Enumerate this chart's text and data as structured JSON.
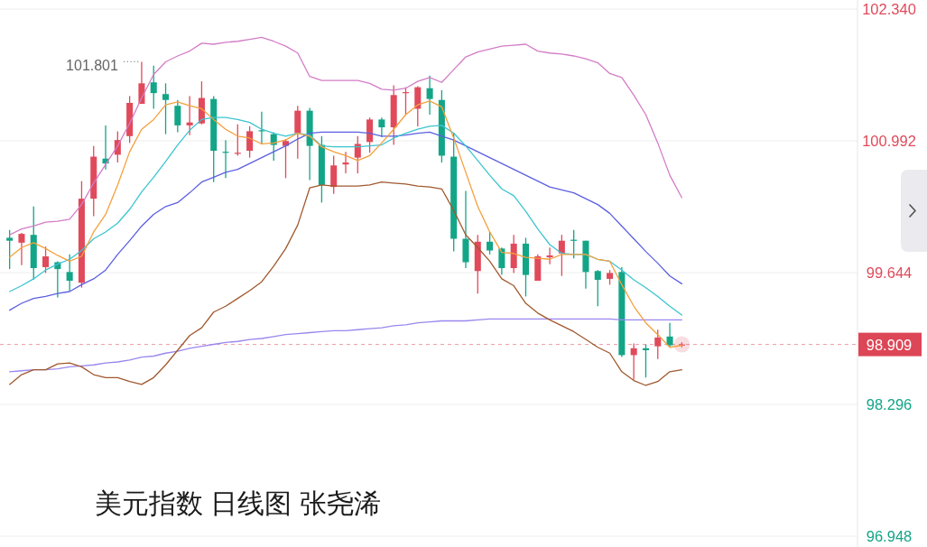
{
  "chart_data": {
    "type": "candlestick",
    "title": "美元指数 日线图 张尧浠",
    "categories": [
      null,
      null,
      null,
      null,
      null,
      null,
      null,
      null,
      null,
      null,
      null,
      null,
      null,
      null,
      null,
      null,
      null,
      null,
      null,
      null,
      null,
      null,
      null,
      null,
      null,
      null,
      null,
      null,
      null,
      null,
      null,
      null,
      null,
      null,
      null,
      null,
      null,
      null,
      null,
      null,
      null,
      null,
      null,
      null,
      null,
      null,
      null,
      null,
      null,
      null,
      null,
      null,
      null,
      null,
      null,
      null,
      null
    ],
    "ohlc": [
      [
        100.0,
        100.08,
        99.68,
        99.97
      ],
      [
        99.95,
        100.05,
        99.72,
        100.04
      ],
      [
        100.03,
        100.32,
        99.57,
        99.69
      ],
      [
        99.7,
        99.91,
        99.64,
        99.81
      ],
      [
        99.75,
        99.76,
        99.39,
        99.68
      ],
      [
        99.65,
        99.83,
        99.46,
        99.56
      ],
      [
        99.54,
        100.58,
        99.49,
        100.4
      ],
      [
        100.4,
        100.94,
        100.22,
        100.83
      ],
      [
        100.81,
        101.15,
        100.7,
        100.76
      ],
      [
        100.85,
        101.09,
        100.77,
        101.0
      ],
      [
        101.04,
        101.45,
        100.97,
        101.38
      ],
      [
        101.37,
        101.801,
        101.37,
        101.58
      ],
      [
        101.59,
        101.76,
        101.32,
        101.48
      ],
      [
        101.47,
        101.58,
        101.06,
        101.41
      ],
      [
        101.35,
        101.41,
        101.08,
        101.15
      ],
      [
        101.15,
        101.45,
        101.05,
        101.18
      ],
      [
        101.17,
        101.6,
        101.16,
        101.43
      ],
      [
        101.42,
        101.45,
        100.57,
        100.89
      ],
      [
        100.88,
        101.0,
        100.61,
        100.87
      ],
      [
        100.86,
        101.16,
        100.84,
        100.87
      ],
      [
        100.89,
        101.14,
        100.82,
        101.09
      ],
      [
        101.1,
        101.29,
        100.96,
        101.09
      ],
      [
        101.06,
        101.08,
        100.79,
        100.95
      ],
      [
        100.94,
        101.01,
        100.61,
        100.99
      ],
      [
        101.07,
        101.35,
        100.81,
        101.3
      ],
      [
        101.3,
        101.33,
        100.59,
        100.94
      ],
      [
        100.95,
        101.04,
        100.36,
        100.54
      ],
      [
        100.52,
        100.84,
        100.45,
        100.74
      ],
      [
        100.75,
        100.88,
        100.66,
        100.77
      ],
      [
        100.82,
        101.04,
        100.66,
        100.96
      ],
      [
        100.98,
        101.23,
        100.87,
        101.21
      ],
      [
        101.21,
        101.23,
        101.03,
        101.13
      ],
      [
        101.13,
        101.56,
        100.95,
        101.46
      ],
      [
        101.48,
        101.54,
        101.26,
        101.49
      ],
      [
        101.32,
        101.55,
        101.14,
        101.54
      ],
      [
        101.53,
        101.66,
        101.26,
        101.42
      ],
      [
        101.41,
        101.51,
        100.77,
        100.84
      ],
      [
        100.83,
        101.07,
        99.86,
        99.99
      ],
      [
        99.99,
        100.48,
        99.69,
        99.75
      ],
      [
        99.66,
        100.03,
        99.43,
        99.96
      ],
      [
        99.96,
        100.06,
        99.83,
        99.87
      ],
      [
        99.89,
        99.9,
        99.62,
        99.69
      ],
      [
        99.69,
        100.03,
        99.64,
        99.94
      ],
      [
        99.94,
        100.0,
        99.4,
        99.62
      ],
      [
        99.56,
        99.83,
        99.56,
        99.81
      ],
      [
        99.8,
        99.9,
        99.73,
        99.82
      ],
      [
        99.84,
        100.03,
        99.61,
        99.97
      ],
      [
        99.98,
        100.08,
        99.79,
        99.97
      ],
      [
        99.97,
        99.97,
        99.48,
        99.65
      ],
      [
        99.66,
        99.67,
        99.3,
        99.57
      ],
      [
        99.58,
        99.67,
        99.52,
        99.64
      ],
      [
        99.65,
        99.7,
        98.78,
        98.8
      ],
      [
        98.8,
        98.92,
        98.55,
        98.87
      ],
      [
        98.87,
        98.91,
        98.57,
        98.85
      ],
      [
        98.89,
        99.06,
        98.76,
        98.98
      ],
      [
        98.99,
        99.13,
        98.88,
        98.9
      ],
      [
        98.9,
        98.93,
        98.88,
        98.909
      ]
    ],
    "colors": [
      "#13a587",
      "#e04a5b",
      "#13a587",
      "#e04a5b",
      "#13a587",
      "#13a587",
      "#e04a5b",
      "#e04a5b",
      "#13a587",
      "#e04a5b",
      "#e04a5b",
      "#e04a5b",
      "#13a587",
      "#13a587",
      "#13a587",
      "#e04a5b",
      "#e04a5b",
      "#13a587",
      "#13a587",
      "#e04a5b",
      "#e04a5b",
      "#13a587",
      "#13a587",
      "#e04a5b",
      "#e04a5b",
      "#13a587",
      "#13a587",
      "#e04a5b",
      "#e04a5b",
      "#e04a5b",
      "#e04a5b",
      "#13a587",
      "#e04a5b",
      "#e04a5b",
      "#e04a5b",
      "#13a587",
      "#13a587",
      "#13a587",
      "#13a587",
      "#e04a5b",
      "#13a587",
      "#13a587",
      "#e04a5b",
      "#13a587",
      "#e04a5b",
      "#e04a5b",
      "#e04a5b",
      "#13a587",
      "#13a587",
      "#13a587",
      "#e04a5b",
      "#13a587",
      "#e04a5b",
      "#13a587",
      "#e04a5b",
      "#13a587",
      "#e04a5b"
    ],
    "series": [
      {
        "type": "line",
        "color": "#9a87ee",
        "values": [
          98.63,
          98.64,
          98.65,
          98.65,
          98.66,
          98.68,
          98.69,
          98.7,
          98.72,
          98.73,
          98.75,
          98.78,
          98.79,
          98.82,
          98.84,
          98.87,
          98.89,
          98.91,
          98.93,
          98.94,
          98.96,
          98.97,
          98.99,
          99.01,
          99.02,
          99.03,
          99.04,
          99.05,
          99.05,
          99.06,
          99.07,
          99.08,
          99.1,
          99.11,
          99.13,
          99.14,
          99.15,
          99.15,
          99.15,
          99.16,
          99.17,
          99.17,
          99.17,
          99.17,
          99.17,
          99.17,
          99.17,
          99.17,
          99.17,
          99.17,
          99.17,
          99.16,
          99.16,
          99.16,
          99.16,
          99.16,
          99.16
        ]
      },
      {
        "type": "line",
        "color": "#a0592e",
        "values": [
          98.5,
          98.6,
          98.65,
          98.65,
          98.71,
          98.72,
          98.68,
          98.6,
          98.57,
          98.57,
          98.53,
          98.5,
          98.57,
          98.7,
          98.85,
          99.0,
          99.08,
          99.24,
          99.3,
          99.38,
          99.46,
          99.55,
          99.71,
          99.89,
          100.13,
          100.51,
          100.54,
          100.53,
          100.53,
          100.53,
          100.54,
          100.57,
          100.56,
          100.55,
          100.53,
          100.52,
          100.5,
          100.28,
          100.03,
          99.9,
          99.76,
          99.58,
          99.51,
          99.33,
          99.23,
          99.16,
          99.1,
          99.04,
          98.96,
          98.88,
          98.82,
          98.63,
          98.54,
          98.49,
          98.53,
          98.63,
          98.65
        ]
      },
      {
        "type": "line",
        "color": "#d47cc6",
        "values": [
          100.03,
          100.09,
          100.12,
          100.16,
          100.17,
          100.19,
          100.34,
          100.56,
          100.75,
          100.94,
          101.17,
          101.43,
          101.67,
          101.8,
          101.86,
          101.91,
          101.99,
          101.98,
          102.0,
          102.01,
          102.03,
          102.05,
          102.01,
          101.96,
          101.89,
          101.65,
          101.61,
          101.61,
          101.61,
          101.61,
          101.58,
          101.52,
          101.51,
          101.53,
          101.6,
          101.64,
          101.59,
          101.72,
          101.85,
          101.9,
          101.93,
          101.96,
          101.97,
          101.98,
          101.91,
          101.89,
          101.88,
          101.86,
          101.83,
          101.79,
          101.68,
          101.64,
          101.46,
          101.26,
          100.97,
          100.64,
          100.41
        ]
      },
      {
        "type": "line",
        "color": "#5b5fe0",
        "values": [
          99.26,
          99.33,
          99.38,
          99.4,
          99.43,
          99.45,
          99.52,
          99.58,
          99.67,
          99.83,
          99.97,
          100.12,
          100.24,
          100.32,
          100.36,
          100.46,
          100.57,
          100.62,
          100.67,
          100.7,
          100.76,
          100.82,
          100.88,
          100.94,
          101.01,
          101.07,
          101.08,
          101.08,
          101.08,
          101.08,
          101.07,
          101.04,
          101.04,
          101.05,
          101.07,
          101.08,
          101.04,
          101.0,
          100.94,
          100.88,
          100.82,
          100.76,
          100.7,
          100.64,
          100.58,
          100.52,
          100.49,
          100.46,
          100.4,
          100.34,
          100.25,
          100.12,
          99.99,
          99.86,
          99.74,
          99.61,
          99.53
        ]
      },
      {
        "type": "line",
        "color": "#3cc4d0",
        "values": [
          99.45,
          99.51,
          99.58,
          99.67,
          99.73,
          99.78,
          99.87,
          99.99,
          100.06,
          100.15,
          100.29,
          100.47,
          100.62,
          100.78,
          100.95,
          101.1,
          101.21,
          101.23,
          101.23,
          101.21,
          101.18,
          101.11,
          101.07,
          101.04,
          101.07,
          101.05,
          100.94,
          100.93,
          100.93,
          100.93,
          100.94,
          100.95,
          101.02,
          101.07,
          101.11,
          101.14,
          101.15,
          101.07,
          100.94,
          100.79,
          100.64,
          100.5,
          100.43,
          100.27,
          100.09,
          99.93,
          99.84,
          99.83,
          99.83,
          99.78,
          99.76,
          99.67,
          99.57,
          99.49,
          99.4,
          99.3,
          99.21
        ]
      },
      {
        "type": "line",
        "color": "#f5a03c",
        "values": [
          99.8,
          99.9,
          99.95,
          99.89,
          99.82,
          99.76,
          99.81,
          100.06,
          100.24,
          100.54,
          100.88,
          101.11,
          101.21,
          101.36,
          101.39,
          101.35,
          101.32,
          101.21,
          101.11,
          101.04,
          101.02,
          100.96,
          100.97,
          101.0,
          101.07,
          101.04,
          100.93,
          100.88,
          100.84,
          100.79,
          100.84,
          100.97,
          101.11,
          101.26,
          101.36,
          101.4,
          101.34,
          101.02,
          100.67,
          100.32,
          100.06,
          99.85,
          99.84,
          99.8,
          99.79,
          99.78,
          99.83,
          99.83,
          99.83,
          99.78,
          99.76,
          99.52,
          99.3,
          99.13,
          99.01,
          98.88,
          98.9
        ]
      }
    ],
    "ylim": [
      96.948,
      102.34
    ],
    "yticks": [
      {
        "value": 102.34,
        "label": "102.340"
      },
      100.992,
      99.644,
      98.296,
      96.948
    ],
    "ref_lines": [
      {
        "axis": "y",
        "value": 98.909,
        "label": "98.909",
        "color": "#dc4656",
        "line_style": "dashed"
      }
    ],
    "annotations": [
      "101.801"
    ],
    "grid": "y",
    "tick_labels": "y"
  }
}
